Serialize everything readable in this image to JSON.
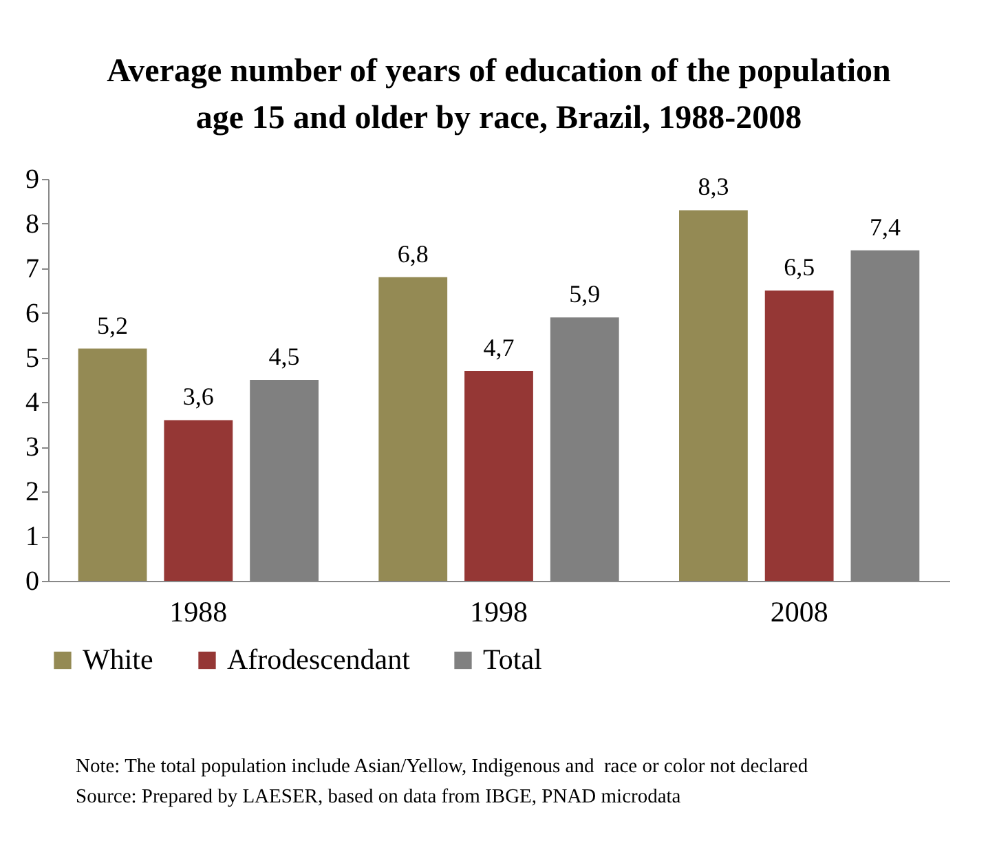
{
  "chart_data": {
    "type": "bar",
    "title": "Average number of years of education of the population age 15 and older by race, Brazil, 1988-2008",
    "categories": [
      "1988",
      "1998",
      "2008"
    ],
    "series": [
      {
        "name": "White",
        "color": "#948a54",
        "values": [
          5.2,
          6.8,
          8.3
        ],
        "value_labels": [
          "5,2",
          "6,8",
          "8,3"
        ]
      },
      {
        "name": "Afrodescendant",
        "color": "#953735",
        "values": [
          3.6,
          4.7,
          6.5
        ],
        "value_labels": [
          "3,6",
          "4,7",
          "6,5"
        ]
      },
      {
        "name": "Total",
        "color": "#808080",
        "values": [
          4.5,
          5.9,
          7.4
        ],
        "value_labels": [
          "4,5",
          "5,9",
          "7,4"
        ]
      }
    ],
    "ylim": [
      0,
      9
    ],
    "yticks": [
      0,
      1,
      2,
      3,
      4,
      5,
      6,
      7,
      8,
      9
    ],
    "grid": false,
    "legend": "bottom",
    "annotations": [
      "Note: The total population include Asian/Yellow, Indigenous and  race or color not declared",
      "Source: Prepared by LAESER, based on data from IBGE, PNAD microdata"
    ]
  }
}
